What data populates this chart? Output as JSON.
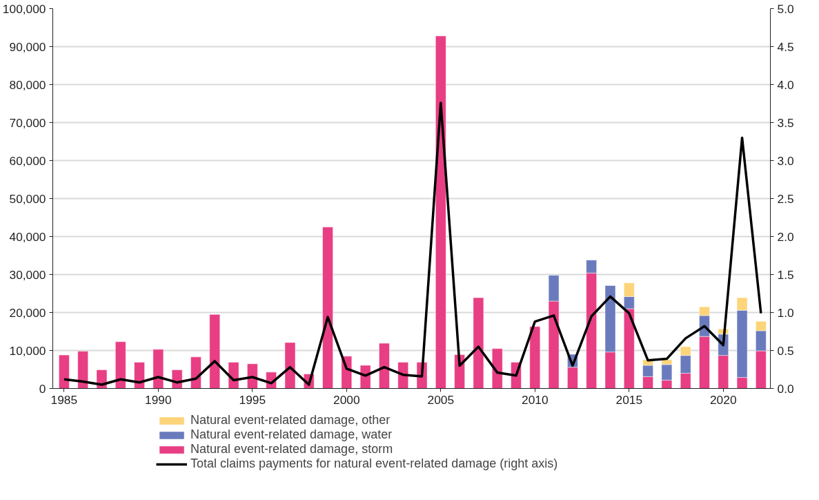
{
  "chart_data": {
    "type": "bar",
    "stacked": true,
    "x": [
      1985,
      1986,
      1987,
      1988,
      1989,
      1990,
      1991,
      1992,
      1993,
      1994,
      1995,
      1996,
      1997,
      1998,
      1999,
      2000,
      2001,
      2002,
      2003,
      2004,
      2005,
      2006,
      2007,
      2008,
      2009,
      2010,
      2011,
      2012,
      2013,
      2014,
      2015,
      2016,
      2017,
      2018,
      2019,
      2020,
      2021,
      2022
    ],
    "series": [
      {
        "name": "Natural event-related damage, storm",
        "color": "#e83e84",
        "values": [
          8800,
          9800,
          4900,
          12300,
          6900,
          10300,
          4900,
          8300,
          19500,
          6900,
          6500,
          4300,
          12100,
          3800,
          42500,
          8500,
          6100,
          11900,
          6900,
          6900,
          92800,
          8900,
          23900,
          10500,
          6900,
          16300,
          23000,
          5600,
          30400,
          9600,
          21000,
          3100,
          2200,
          4000,
          13700,
          8700,
          2900,
          9900
        ]
      },
      {
        "name": "Natural event-related damage, water",
        "color": "#6a7bbd",
        "values": [
          null,
          null,
          null,
          null,
          null,
          null,
          null,
          null,
          null,
          null,
          null,
          null,
          null,
          null,
          null,
          null,
          null,
          null,
          null,
          null,
          null,
          null,
          null,
          null,
          null,
          null,
          6800,
          3400,
          3400,
          17500,
          3200,
          3000,
          4100,
          4700,
          5500,
          5600,
          17700,
          5300
        ]
      },
      {
        "name": "Natural event-related damage, other",
        "color": "#fdd479",
        "values": [
          null,
          null,
          null,
          null,
          null,
          null,
          null,
          null,
          null,
          null,
          null,
          null,
          null,
          null,
          null,
          null,
          null,
          null,
          null,
          null,
          null,
          null,
          null,
          null,
          null,
          null,
          null,
          null,
          null,
          null,
          3600,
          1500,
          1300,
          2300,
          2300,
          1400,
          3300,
          2500
        ]
      },
      {
        "name": "Total claims payments for natural event-related damage (right axis)",
        "type": "line",
        "axis": "y2",
        "color": "#000000",
        "values": [
          0.12,
          0.09,
          0.05,
          0.12,
          0.08,
          0.15,
          0.08,
          0.13,
          0.36,
          0.11,
          0.15,
          0.07,
          0.28,
          0.05,
          0.94,
          0.26,
          0.17,
          0.28,
          0.18,
          0.16,
          3.76,
          0.3,
          0.55,
          0.21,
          0.17,
          0.88,
          0.96,
          0.3,
          0.95,
          1.21,
          0.99,
          0.37,
          0.39,
          0.66,
          0.82,
          0.57,
          3.3,
          0.99
        ]
      }
    ],
    "xlim": [
      1984.4,
      2022.5
    ],
    "xticks": [
      1985,
      1990,
      1995,
      2000,
      2005,
      2010,
      2015,
      2020
    ],
    "ylim": [
      0,
      100000
    ],
    "yticks": [
      {
        "value": 0,
        "label": "0"
      },
      {
        "value": 10000,
        "label": "10,000"
      },
      {
        "value": 20000,
        "label": "20,000"
      },
      {
        "value": 30000,
        "label": "30,000"
      },
      {
        "value": 40000,
        "label": "40,000"
      },
      {
        "value": 50000,
        "label": "50,000"
      },
      {
        "value": 60000,
        "label": "60,000"
      },
      {
        "value": 70000,
        "label": "70,000"
      },
      {
        "value": 80000,
        "label": "80,000"
      },
      {
        "value": 90000,
        "label": "90,000"
      },
      {
        "value": 100000,
        "label": "100,000"
      }
    ],
    "y2lim": [
      0,
      5
    ],
    "y2ticks": [
      {
        "value": 0,
        "label": "0.0"
      },
      {
        "value": 0.5,
        "label": "0.5"
      },
      {
        "value": 1,
        "label": "1.0"
      },
      {
        "value": 1.5,
        "label": "1.5"
      },
      {
        "value": 2,
        "label": "2.0"
      },
      {
        "value": 2.5,
        "label": "2.5"
      },
      {
        "value": 3,
        "label": "3.0"
      },
      {
        "value": 3.5,
        "label": "3.5"
      },
      {
        "value": 4,
        "label": "4.0"
      },
      {
        "value": 4.5,
        "label": "4.5"
      },
      {
        "value": 5,
        "label": "5.0"
      }
    ],
    "grid": "y",
    "legend": "bottom",
    "line_style": "solid",
    "marker": "none"
  }
}
